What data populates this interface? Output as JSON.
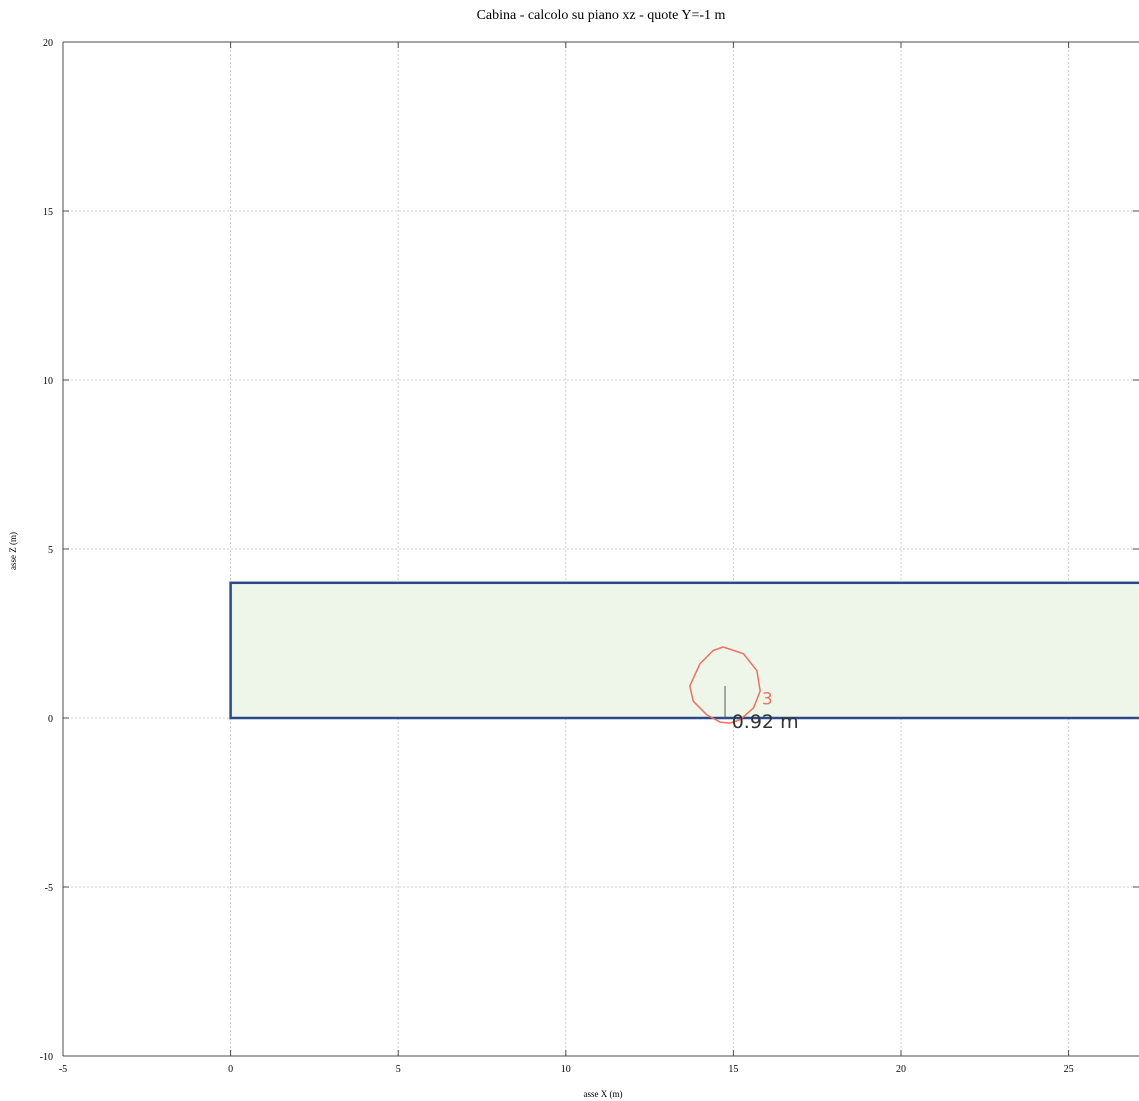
{
  "chart_data": {
    "type": "line",
    "title": "Cabina  -  calcolo su piano xz  -  quote Y=-1 m",
    "xlabel": "asse X (m)",
    "ylabel": "asse Z (m)",
    "xlim": [
      -5,
      27.1
    ],
    "ylim": [
      -10,
      20
    ],
    "xticks": [
      -5,
      0,
      5,
      10,
      15,
      20,
      25
    ],
    "yticks": [
      -10,
      -5,
      0,
      5,
      10,
      15,
      20
    ],
    "grid": true,
    "colors": {
      "room_fill": "#eef6ea",
      "room_border": "#2a4a8c",
      "contour": "#f07060",
      "annotation_text": "#333333",
      "contour_label": "#f07060"
    },
    "room": {
      "x": [
        0,
        27.1
      ],
      "z": [
        0,
        4
      ]
    },
    "series": [
      {
        "points": [
          [
            14.7,
            2.1
          ],
          [
            15.3,
            1.9
          ],
          [
            15.7,
            1.4
          ],
          [
            15.8,
            0.8
          ],
          [
            15.6,
            0.3
          ],
          [
            15.2,
            -0.05
          ],
          [
            14.9,
            -0.15
          ],
          [
            14.6,
            -0.12
          ],
          [
            14.2,
            0.1
          ],
          [
            13.8,
            0.5
          ],
          [
            13.7,
            0.95
          ],
          [
            14.0,
            1.6
          ],
          [
            14.4,
            2.0
          ],
          [
            14.7,
            2.1
          ]
        ]
      }
    ],
    "annotations": {
      "contour_value": "3",
      "contour_value_pos": [
        15.85,
        0.4
      ],
      "marker_line": [
        [
          14.75,
          0.95
        ],
        [
          14.75,
          0.0
        ]
      ],
      "distance_text": "0.92 m",
      "distance_text_pos": [
        14.95,
        -0.3
      ]
    }
  }
}
